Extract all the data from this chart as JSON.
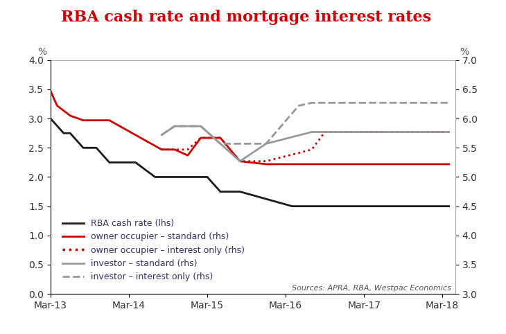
{
  "title": "RBA cash rate and mortgage interest rates",
  "title_color": "#cc0000",
  "title_fontsize": 16,
  "lhs_ylim": [
    0.0,
    4.0
  ],
  "rhs_ylim": [
    3.0,
    7.0
  ],
  "lhs_yticks": [
    0.0,
    0.5,
    1.0,
    1.5,
    2.0,
    2.5,
    3.0,
    3.5,
    4.0
  ],
  "rhs_yticks": [
    3.0,
    3.5,
    4.0,
    4.5,
    5.0,
    5.5,
    6.0,
    6.5,
    7.0
  ],
  "lhs_ylabel": "%",
  "rhs_ylabel": "%",
  "source_text": "Sources: APRA, RBA, Westpac Economics",
  "rba_cash_rate": {
    "x": [
      0,
      2,
      3,
      5,
      7,
      9,
      11,
      13,
      16,
      19,
      21,
      24,
      26,
      29,
      37,
      40,
      61
    ],
    "y": [
      3.0,
      2.75,
      2.75,
      2.5,
      2.5,
      2.25,
      2.25,
      2.25,
      2.0,
      2.0,
      2.0,
      2.0,
      1.75,
      1.75,
      1.5,
      1.5,
      1.5
    ],
    "color": "#1a1a1a",
    "linewidth": 2.0,
    "linestyle": "-",
    "label": "RBA cash rate (lhs)"
  },
  "owner_occ_standard": {
    "x": [
      0,
      1,
      3,
      5,
      9,
      17,
      19,
      21,
      23,
      26,
      29,
      33,
      40,
      61
    ],
    "y": [
      6.47,
      6.22,
      6.05,
      5.97,
      5.97,
      5.47,
      5.47,
      5.37,
      5.67,
      5.67,
      5.27,
      5.22,
      5.22,
      5.22
    ],
    "color": "#cc0000",
    "linewidth": 2.0,
    "linestyle": "-",
    "label": "owner occupier – standard (rhs)"
  },
  "owner_occ_io": {
    "x": [
      17,
      19,
      21,
      23,
      26,
      29,
      33,
      40,
      42,
      61
    ],
    "y": [
      5.47,
      5.47,
      5.47,
      5.67,
      5.67,
      5.27,
      5.27,
      5.47,
      5.77,
      5.77
    ],
    "color": "#cc0000",
    "linewidth": 2.0,
    "linestyle": ":",
    "label": "owner occupier – interest only (rhs)"
  },
  "investor_standard": {
    "x": [
      17,
      19,
      21,
      23,
      26,
      29,
      33,
      40,
      42,
      61
    ],
    "y": [
      5.72,
      5.87,
      5.87,
      5.87,
      5.57,
      5.27,
      5.57,
      5.77,
      5.77,
      5.77
    ],
    "color": "#999999",
    "linewidth": 2.0,
    "linestyle": "-",
    "label": "investor – standard (rhs)"
  },
  "investor_io": {
    "x": [
      17,
      19,
      21,
      23,
      26,
      29,
      33,
      38,
      40,
      42,
      61
    ],
    "y": [
      5.72,
      5.87,
      5.87,
      5.87,
      5.57,
      5.57,
      5.57,
      6.22,
      6.27,
      6.27,
      6.27
    ],
    "color": "#999999",
    "linewidth": 2.0,
    "linestyle": "--",
    "label": "investor – interest only (rhs)"
  },
  "xtick_positions": [
    0,
    12,
    24,
    36,
    48,
    60
  ],
  "xtick_labels": [
    "Mar-13",
    "Mar-14",
    "Mar-15",
    "Mar-16",
    "Mar-17",
    "Mar-18"
  ],
  "xlim": [
    0,
    62
  ]
}
